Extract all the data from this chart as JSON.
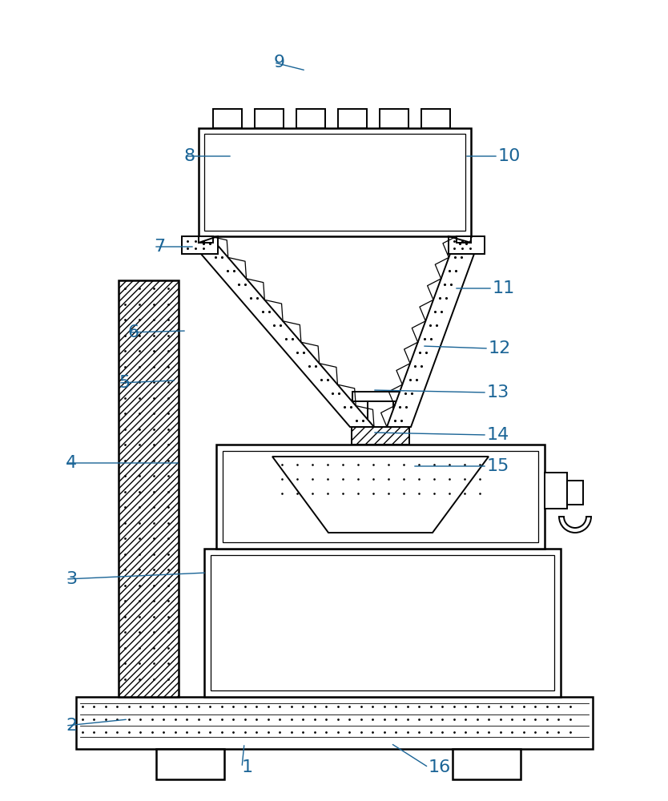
{
  "bg_color": "#ffffff",
  "line_color": "#000000",
  "label_color": "#1a6496",
  "label_fontsize": 16,
  "leader_line_color": "#1a6496"
}
